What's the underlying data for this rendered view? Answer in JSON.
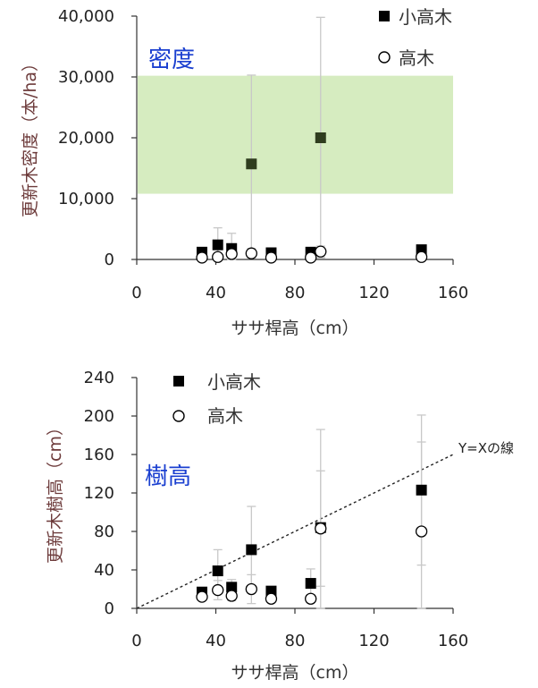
{
  "chart_data": [
    {
      "type": "scatter",
      "title": "",
      "xlabel": "ササ桿高（cm）",
      "ylabel": "更新木密度（本/ha）",
      "xlim": [
        0,
        160
      ],
      "ylim": [
        0,
        40000
      ],
      "x_ticks": [
        "0",
        "40",
        "80",
        "120",
        "160"
      ],
      "y_ticks": [
        "0",
        "10,000",
        "20,000",
        "30,000",
        "40,000"
      ],
      "grid": false,
      "legend_position": "top-right",
      "annotation": "密度",
      "band": {
        "y_from": 10800,
        "y_to": 30200,
        "color": "#d6ecc0"
      },
      "colors": {
        "small_tree": "#000000",
        "tree": "#000000",
        "error_bar": "#c8c8c8",
        "band": "#d6ecc0",
        "annotation": "#1a3fd0"
      },
      "series": [
        {
          "name": "小高木",
          "marker": "filled-square",
          "points": [
            {
              "x": 33,
              "y": 1200,
              "err": 500
            },
            {
              "x": 41,
              "y": 2400,
              "err": 2800
            },
            {
              "x": 48,
              "y": 1800,
              "err": 2500
            },
            {
              "x": 58,
              "y": 15700,
              "err": 14600
            },
            {
              "x": 68,
              "y": 1100,
              "err": 400
            },
            {
              "x": 88,
              "y": 1200,
              "err": 500
            },
            {
              "x": 93,
              "y": 20000,
              "err": 19800
            },
            {
              "x": 144,
              "y": 1600,
              "err": 600
            }
          ]
        },
        {
          "name": "高木",
          "marker": "open-circle",
          "points": [
            {
              "x": 33,
              "y": 300,
              "err": 300
            },
            {
              "x": 41,
              "y": 400,
              "err": 500
            },
            {
              "x": 48,
              "y": 900,
              "err": 1200
            },
            {
              "x": 58,
              "y": 1000,
              "err": 800
            },
            {
              "x": 68,
              "y": 300,
              "err": 300
            },
            {
              "x": 88,
              "y": 300,
              "err": 300
            },
            {
              "x": 93,
              "y": 1300,
              "err": 900
            },
            {
              "x": 144,
              "y": 400,
              "err": 300
            }
          ]
        }
      ]
    },
    {
      "type": "scatter",
      "title": "",
      "xlabel": "ササ桿高（cm）",
      "ylabel": "更新木樹高（cm）",
      "xlim": [
        0,
        160
      ],
      "ylim": [
        0,
        240
      ],
      "x_ticks": [
        "0",
        "40",
        "80",
        "120",
        "160"
      ],
      "y_ticks": [
        "0",
        "40",
        "80",
        "120",
        "160",
        "200",
        "240"
      ],
      "grid": false,
      "legend_position": "top-left",
      "annotation": "樹高",
      "reference_line": {
        "label": "Y=Xの線",
        "from": [
          0,
          0
        ],
        "to": [
          160,
          160
        ]
      },
      "series": [
        {
          "name": "小高木",
          "marker": "filled-square",
          "points": [
            {
              "x": 33,
              "y": 17,
              "err": 4
            },
            {
              "x": 41,
              "y": 39,
              "err": 22
            },
            {
              "x": 48,
              "y": 22,
              "err": 8
            },
            {
              "x": 58,
              "y": 61,
              "err": 45
            },
            {
              "x": 68,
              "y": 18,
              "err": 4
            },
            {
              "x": 88,
              "y": 26,
              "err": 15
            },
            {
              "x": 93,
              "y": 84,
              "err": 102
            },
            {
              "x": 144,
              "y": 123,
              "err": 78
            }
          ]
        },
        {
          "name": "高木",
          "marker": "open-circle",
          "points": [
            {
              "x": 33,
              "y": 12,
              "err": 3
            },
            {
              "x": 41,
              "y": 19,
              "err": 10
            },
            {
              "x": 48,
              "y": 13,
              "err": 5
            },
            {
              "x": 58,
              "y": 20,
              "err": 15
            },
            {
              "x": 68,
              "y": 10,
              "err": 3
            },
            {
              "x": 88,
              "y": 10,
              "err": 4
            },
            {
              "x": 93,
              "y": 83,
              "err": 60
            },
            {
              "x": 144,
              "y": 80,
              "err": 93
            }
          ]
        }
      ]
    }
  ]
}
